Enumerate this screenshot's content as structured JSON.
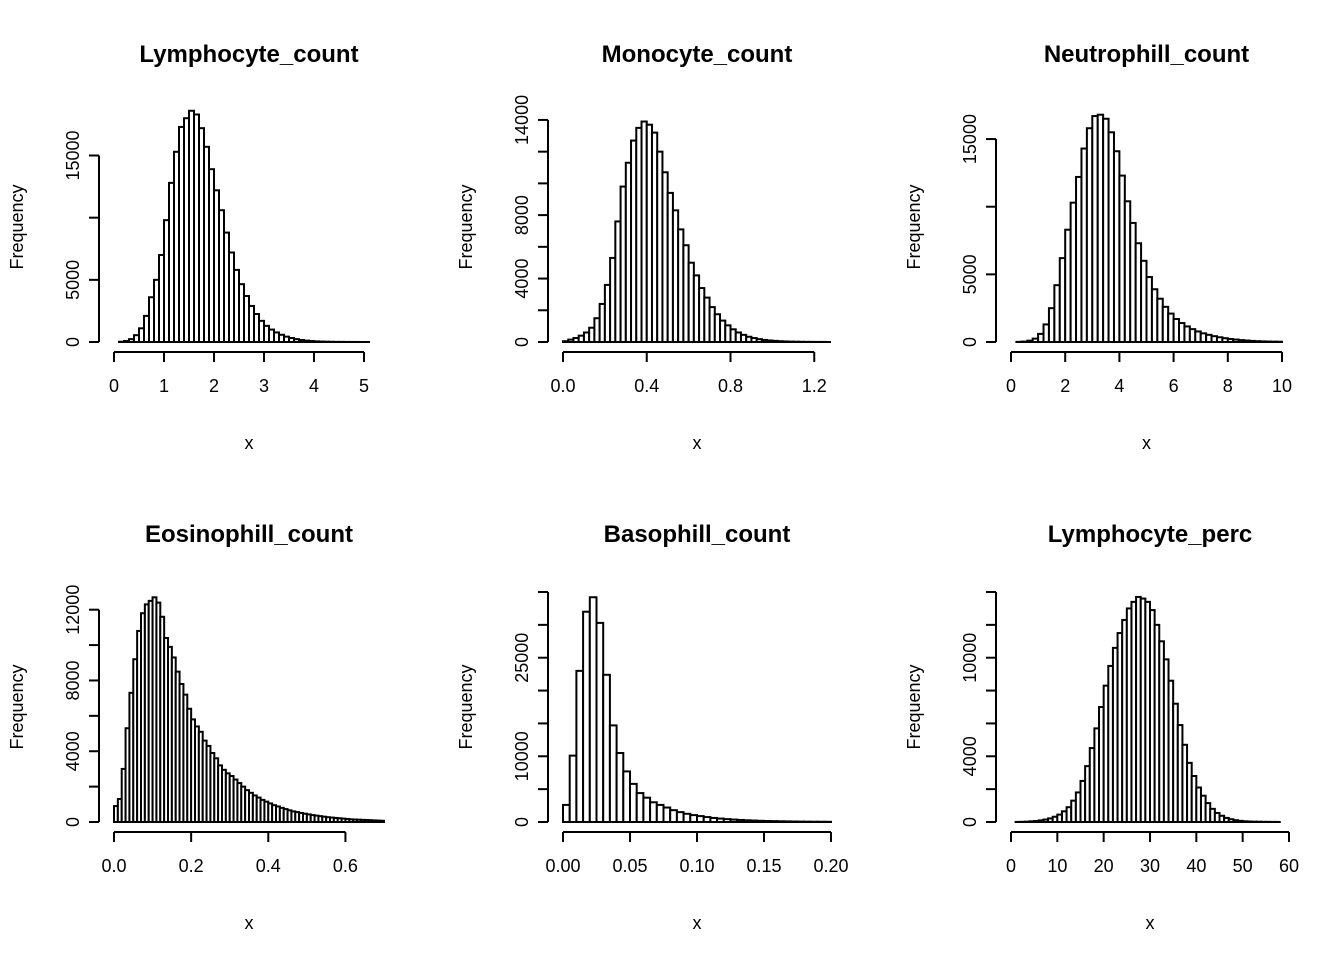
{
  "chart_data": [
    {
      "type": "bar",
      "title": "Lymphocyte_count",
      "xlabel": "x",
      "ylabel": "Frequency",
      "xlim": [
        0,
        5.4
      ],
      "ylim": [
        0,
        18500
      ],
      "xticks": [
        0,
        1,
        2,
        3,
        4,
        5
      ],
      "xtick_labels": [
        "0",
        "1",
        "2",
        "3",
        "4",
        "5"
      ],
      "yticks": [
        0,
        5000,
        10000,
        15000
      ],
      "ytick_labels": [
        "0",
        "5000",
        "",
        "15000"
      ],
      "bins": {
        "start": 0.0,
        "width": 0.1
      },
      "values": [
        0,
        20,
        80,
        230,
        550,
        1100,
        2100,
        3600,
        5000,
        7000,
        9800,
        12800,
        15300,
        17300,
        18000,
        18600,
        18300,
        17200,
        15700,
        13900,
        12200,
        10600,
        8800,
        7200,
        5800,
        4650,
        3700,
        2900,
        2250,
        1700,
        1300,
        1000,
        770,
        580,
        430,
        320,
        230,
        160,
        110,
        75,
        50,
        35,
        25,
        15,
        10,
        8,
        5,
        3,
        2,
        1,
        1,
        0,
        0,
        0
      ]
    },
    {
      "type": "bar",
      "title": "Monocyte_count",
      "xlabel": "x",
      "ylabel": "Frequency",
      "xlim": [
        0,
        1.28
      ],
      "ylim": [
        0,
        14500
      ],
      "xticks": [
        0.0,
        0.4,
        0.8,
        1.2
      ],
      "xtick_labels": [
        "0.0",
        "0.4",
        "0.8",
        "1.2"
      ],
      "yticks": [
        0,
        2000,
        4000,
        6000,
        8000,
        10000,
        12000,
        14000
      ],
      "ytick_labels": [
        "0",
        "",
        "4000",
        "",
        "8000",
        "",
        "",
        "14000"
      ],
      "bins": {
        "start": 0.0,
        "width": 0.025
      },
      "values": [
        50,
        150,
        250,
        400,
        600,
        900,
        1500,
        2400,
        3600,
        5300,
        7600,
        9800,
        11300,
        12700,
        13500,
        13900,
        13700,
        13200,
        12000,
        10700,
        9400,
        8300,
        7100,
        6100,
        5000,
        4200,
        3400,
        2800,
        2200,
        1750,
        1350,
        1050,
        800,
        600,
        450,
        330,
        250,
        180,
        130,
        95,
        70,
        50,
        35,
        25,
        18,
        12,
        8,
        6,
        4,
        3,
        2
      ]
    },
    {
      "type": "bar",
      "title": "Neutrophill_count",
      "xlabel": "x",
      "ylabel": "Frequency",
      "xlim": [
        0,
        10
      ],
      "ylim": [
        0,
        17000
      ],
      "xticks": [
        0,
        2,
        4,
        6,
        8,
        10
      ],
      "xtick_labels": [
        "0",
        "2",
        "4",
        "6",
        "8",
        "10"
      ],
      "yticks": [
        0,
        5000,
        10000,
        15000
      ],
      "ytick_labels": [
        "0",
        "5000",
        "",
        "15000"
      ],
      "bins": {
        "start": 0.0,
        "width": 0.2
      },
      "values": [
        0,
        10,
        30,
        100,
        250,
        600,
        1300,
        2500,
        4200,
        6200,
        8300,
        10300,
        12200,
        14300,
        15800,
        16700,
        16800,
        16500,
        15500,
        14100,
        12300,
        10400,
        8800,
        7300,
        6000,
        4800,
        3900,
        3200,
        2600,
        2100,
        1700,
        1400,
        1150,
        950,
        780,
        640,
        530,
        430,
        350,
        280,
        220,
        180,
        140,
        110,
        80,
        60,
        45,
        35,
        25,
        20
      ]
    },
    {
      "type": "bar",
      "title": "Eosinophill_count",
      "xlabel": "x",
      "ylabel": "Frequency",
      "xlim": [
        0,
        0.7
      ],
      "ylim": [
        0,
        13000
      ],
      "xticks": [
        0.0,
        0.2,
        0.4,
        0.6
      ],
      "xtick_labels": [
        "0.0",
        "0.2",
        "0.4",
        "0.6"
      ],
      "yticks": [
        0,
        2000,
        4000,
        6000,
        8000,
        10000,
        12000
      ],
      "ytick_labels": [
        "0",
        "",
        "4000",
        "",
        "8000",
        "",
        "12000"
      ],
      "bins": {
        "start": 0.0,
        "width": 0.01
      },
      "values": [
        900,
        1300,
        3000,
        5300,
        7300,
        9200,
        10800,
        11800,
        12300,
        12500,
        12700,
        12400,
        11600,
        10400,
        9900,
        9300,
        8500,
        7800,
        7200,
        6400,
        5800,
        5400,
        5100,
        4600,
        4300,
        3900,
        3600,
        3200,
        2950,
        2750,
        2600,
        2400,
        2200,
        2000,
        1800,
        1650,
        1500,
        1380,
        1250,
        1150,
        1050,
        950,
        880,
        800,
        730,
        660,
        600,
        560,
        510,
        470,
        430,
        390,
        360,
        330,
        300,
        270,
        250,
        230,
        210,
        190,
        170,
        150,
        140,
        130,
        120,
        110,
        100,
        90,
        80,
        70
      ]
    },
    {
      "type": "bar",
      "title": "Basophill_count",
      "xlabel": "x",
      "ylabel": "Frequency",
      "xlim": [
        0,
        0.2
      ],
      "ylim": [
        0,
        35000
      ],
      "xticks": [
        0.0,
        0.05,
        0.1,
        0.15,
        0.2
      ],
      "xtick_labels": [
        "0.00",
        "0.05",
        "0.10",
        "0.15",
        "0.20"
      ],
      "yticks": [
        0,
        5000,
        10000,
        15000,
        20000,
        25000,
        30000,
        35000
      ],
      "ytick_labels": [
        "0",
        "",
        "10000",
        "",
        "",
        "25000",
        "",
        ""
      ],
      "bins": {
        "start": 0.0,
        "width": 0.005
      },
      "values": [
        2600,
        10100,
        23000,
        32000,
        34200,
        30300,
        22400,
        14700,
        10500,
        7700,
        5800,
        4400,
        3700,
        3000,
        2600,
        2200,
        1800,
        1500,
        1250,
        1050,
        900,
        750,
        620,
        520,
        440,
        370,
        310,
        260,
        220,
        180,
        150,
        130,
        110,
        90,
        75,
        60,
        50,
        40,
        35,
        30,
        25
      ]
    },
    {
      "type": "bar",
      "title": "Lymphocyte_perc",
      "xlabel": "x",
      "ylabel": "Frequency",
      "xlim": [
        0,
        60
      ],
      "ylim": [
        0,
        14000
      ],
      "xticks": [
        0,
        10,
        20,
        30,
        40,
        50,
        60
      ],
      "xtick_labels": [
        "0",
        "10",
        "20",
        "30",
        "40",
        "50",
        "60"
      ],
      "yticks": [
        0,
        2000,
        4000,
        6000,
        8000,
        10000,
        12000,
        14000
      ],
      "ytick_labels": [
        "0",
        "",
        "4000",
        "",
        "",
        "10000",
        "",
        ""
      ],
      "bins": {
        "start": 0.0,
        "width": 1
      },
      "values": [
        0,
        5,
        10,
        20,
        40,
        60,
        100,
        150,
        220,
        320,
        450,
        650,
        900,
        1300,
        1800,
        2500,
        3400,
        4500,
        5700,
        7000,
        8300,
        9500,
        10600,
        11500,
        12300,
        13000,
        13400,
        13700,
        13600,
        13400,
        12900,
        12000,
        11000,
        9900,
        8600,
        7200,
        5900,
        4700,
        3600,
        2800,
        2100,
        1600,
        1150,
        800,
        550,
        380,
        250,
        170,
        110,
        70,
        45,
        30,
        20,
        15,
        10,
        7,
        5,
        3
      ]
    }
  ]
}
